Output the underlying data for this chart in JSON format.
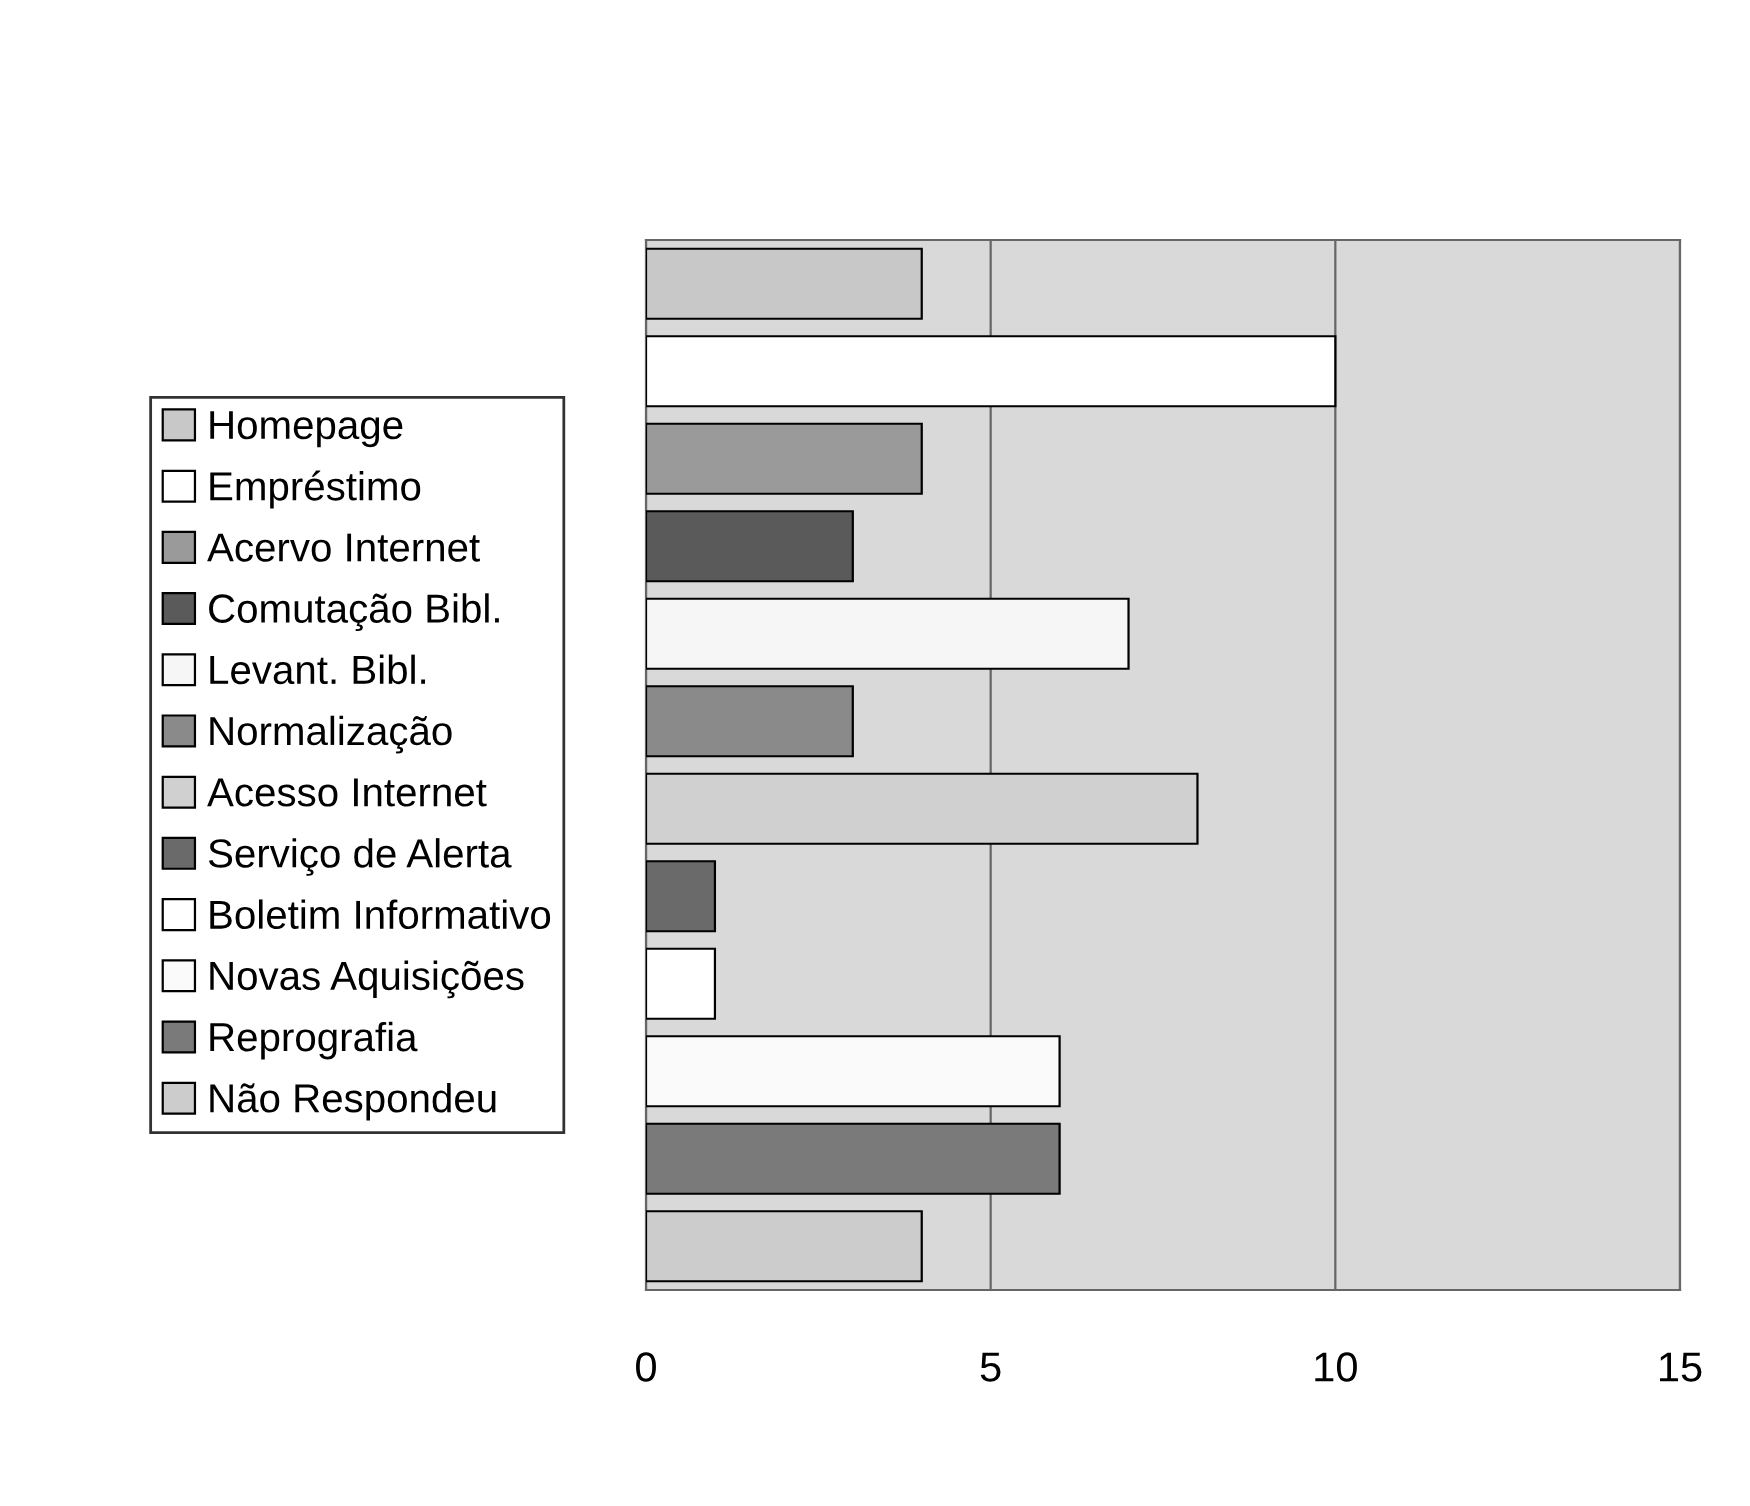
{
  "chart_data": {
    "type": "bar",
    "orientation": "horizontal",
    "categories": [
      null,
      null,
      null,
      null,
      null,
      null,
      null,
      null,
      null,
      null,
      null,
      null
    ],
    "series": [
      {
        "name": "Homepage",
        "color": "#c8c8c8",
        "values": [
          4,
          null,
          null,
          null,
          null,
          null,
          null,
          null,
          null,
          null,
          null,
          null
        ]
      },
      {
        "name": "Empréstimo",
        "color": "#ffffff",
        "values": [
          null,
          10,
          null,
          null,
          null,
          null,
          null,
          null,
          null,
          null,
          null,
          null
        ]
      },
      {
        "name": "Acervo Internet",
        "color": "#9a9a9a",
        "values": [
          null,
          null,
          4,
          null,
          null,
          null,
          null,
          null,
          null,
          null,
          null,
          null
        ]
      },
      {
        "name": "Comutação Bibl.",
        "color": "#5a5a5a",
        "values": [
          null,
          null,
          null,
          3,
          null,
          null,
          null,
          null,
          null,
          null,
          null,
          null
        ]
      },
      {
        "name": "Levant. Bibl.",
        "color": "#f6f6f6",
        "values": [
          null,
          null,
          null,
          null,
          7,
          null,
          null,
          null,
          null,
          null,
          null,
          null
        ]
      },
      {
        "name": "Normalização",
        "color": "#8a8a8a",
        "values": [
          null,
          null,
          null,
          null,
          null,
          3,
          null,
          null,
          null,
          null,
          null,
          null
        ]
      },
      {
        "name": "Acesso Internet",
        "color": "#d0d0d0",
        "values": [
          null,
          null,
          null,
          null,
          null,
          null,
          8,
          null,
          null,
          null,
          null,
          null
        ]
      },
      {
        "name": "Serviço de Alerta",
        "color": "#6a6a6a",
        "values": [
          null,
          null,
          null,
          null,
          null,
          null,
          null,
          1,
          null,
          null,
          null,
          null
        ]
      },
      {
        "name": "Boletim Informativo",
        "color": "#ffffff",
        "values": [
          null,
          null,
          null,
          null,
          null,
          null,
          null,
          null,
          1,
          null,
          null,
          null
        ]
      },
      {
        "name": "Novas Aquisições",
        "color": "#fafafa",
        "values": [
          null,
          null,
          null,
          null,
          null,
          null,
          null,
          null,
          null,
          6,
          null,
          null
        ]
      },
      {
        "name": "Reprografia",
        "color": "#7a7a7a",
        "values": [
          null,
          null,
          null,
          null,
          null,
          null,
          null,
          null,
          null,
          null,
          6,
          null
        ]
      },
      {
        "name": "Não Respondeu",
        "color": "#cccccc",
        "values": [
          null,
          null,
          null,
          null,
          null,
          null,
          null,
          null,
          null,
          null,
          null,
          4
        ]
      }
    ],
    "xlim": [
      0,
      15
    ],
    "xticks": [
      0,
      5,
      10,
      15
    ],
    "grid": "x",
    "legend": "left",
    "tick_labels": "x"
  }
}
